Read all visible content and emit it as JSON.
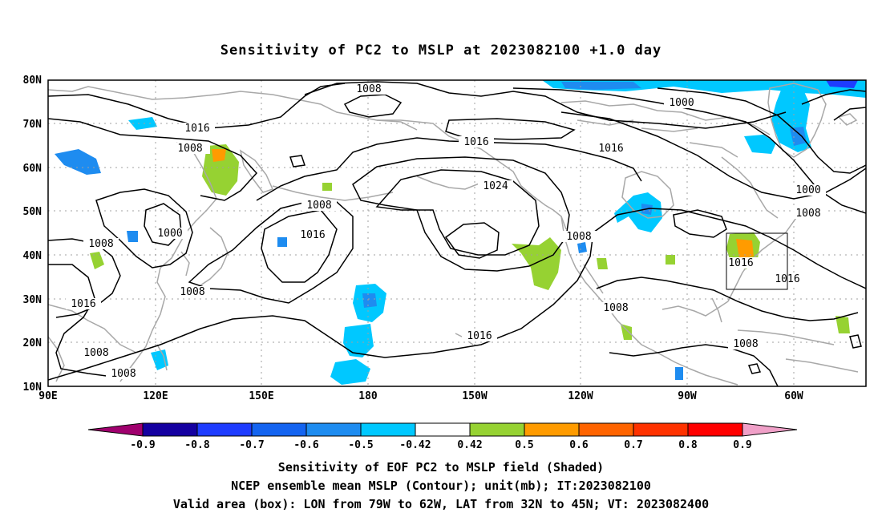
{
  "title": "Sensitivity of PC2 to MSLP at 2023082100 +1.0 day",
  "map": {
    "lon_labels": [
      "90E",
      "120E",
      "150E",
      "180",
      "150W",
      "120W",
      "90W",
      "60W"
    ],
    "lat_labels": [
      "80N",
      "70N",
      "60N",
      "50N",
      "40N",
      "30N",
      "20N",
      "10N"
    ],
    "contour_labels": [
      "1008",
      "1016",
      "1008",
      "1016",
      "1008",
      "1000",
      "1024",
      "1016",
      "1016",
      "1008",
      "1008",
      "1000",
      "1016",
      "1008",
      "1008",
      "1016",
      "1016",
      "1008",
      "1016",
      "1008",
      "1008",
      "1016",
      "1008",
      "1000"
    ],
    "valid_box": {
      "lon_from": "79W",
      "lon_to": "62W",
      "lat_from": "32N",
      "lat_to": "45N"
    }
  },
  "colorbar": {
    "tick_labels": [
      "-0.9",
      "-0.8",
      "-0.7",
      "-0.6",
      "-0.5",
      "-0.42",
      "0.42",
      "0.5",
      "0.6",
      "0.7",
      "0.8",
      "0.9"
    ],
    "colors": [
      "#a0006e",
      "#1400a0",
      "#1e3cff",
      "#1464f0",
      "#1e8cf0",
      "#00c8ff",
      "#ffffff",
      "#96d232",
      "#ff9b00",
      "#ff6400",
      "#ff3200",
      "#ff0000",
      "#f0a0c8"
    ]
  },
  "captions": [
    "Sensitivity of EOF PC2 to MSLP field (Shaded)",
    "NCEP ensemble mean MSLP (Contour); unit(mb); IT:2023082100",
    "Valid area (box): LON from 79W to 62W, LAT from 32N to 45N; VT: 2023082400"
  ],
  "palette": {
    "coast": "#a8a8a8",
    "contour": "#000000",
    "grid": "#a0a0a0"
  }
}
